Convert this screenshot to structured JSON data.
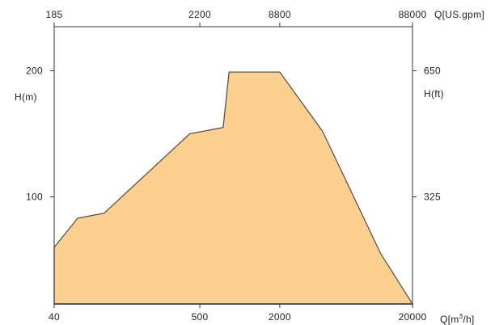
{
  "chart_data": {
    "type": "area",
    "x_scale": "log",
    "y_scale": "linear",
    "x_bottom": {
      "label": "Q[m³/h]",
      "unit": "m³/h",
      "range": [
        40,
        20000
      ],
      "ticks": [
        40,
        500,
        2000,
        20000
      ],
      "tick_labels": [
        "40",
        "500",
        "2000",
        "20000"
      ]
    },
    "x_top": {
      "label": "Q[US.gpm]",
      "unit": "US.gpm",
      "ticks": [
        185,
        2200,
        8800,
        88000
      ],
      "tick_labels": [
        "185",
        "2200",
        "8800",
        "88000"
      ]
    },
    "y_left": {
      "label": "H(m)",
      "unit": "m",
      "range": [
        15,
        235
      ],
      "ticks": [
        100,
        200
      ],
      "tick_labels": [
        "100",
        "200"
      ]
    },
    "y_right": {
      "label": "H(ft)",
      "unit": "ft",
      "ticks": [
        325,
        650
      ],
      "tick_labels": [
        "325",
        "650"
      ]
    },
    "series": [
      {
        "x": [
          40,
          40,
          60,
          95,
          420,
          750,
          830,
          2000,
          4200,
          11500,
          20000,
          20000
        ],
        "y": [
          15,
          60,
          83,
          87,
          150,
          155,
          199,
          199,
          152,
          55,
          15,
          15
        ]
      }
    ],
    "grid": false,
    "legend": "none",
    "colors": {
      "fill": "#fcd08f",
      "stroke": "#555555",
      "axis": "#333333"
    }
  }
}
